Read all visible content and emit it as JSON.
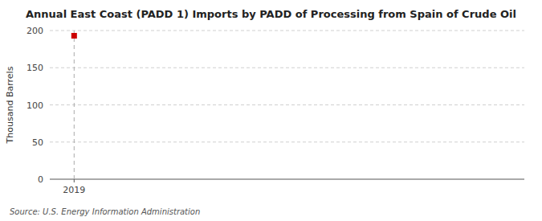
{
  "chart_data": {
    "type": "scatter",
    "title": "Annual East Coast (PADD 1) Imports by PADD of Processing from Spain of Crude Oil",
    "y_label": "Thousand Barrels",
    "source": "Source: U.S. Energy Information Administration",
    "x": [
      2019
    ],
    "values": [
      193
    ],
    "color": "#cc0000",
    "marker": "square",
    "reference_x": 2019,
    "xlim": [
      2018.6,
      2026.4
    ],
    "xticks": [
      2019
    ],
    "ylim": [
      0,
      200
    ],
    "yticks": [
      0,
      50,
      100,
      150,
      200
    ],
    "grid": true
  }
}
